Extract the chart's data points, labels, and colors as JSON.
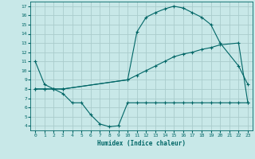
{
  "bg_color": "#c8e8e8",
  "grid_color": "#aacccc",
  "line_color": "#006666",
  "xlabel": "Humidex (Indice chaleur)",
  "xlim": [
    -0.5,
    23.5
  ],
  "ylim": [
    3.5,
    17.5
  ],
  "xticks": [
    0,
    1,
    2,
    3,
    4,
    5,
    6,
    7,
    8,
    9,
    10,
    11,
    12,
    13,
    14,
    15,
    16,
    17,
    18,
    19,
    20,
    21,
    22,
    23
  ],
  "yticks": [
    4,
    5,
    6,
    7,
    8,
    9,
    10,
    11,
    12,
    13,
    14,
    15,
    16,
    17
  ],
  "curve1_x": [
    0,
    1,
    2,
    3,
    10,
    11,
    12,
    13,
    14,
    15,
    16,
    17,
    18,
    19,
    20,
    22,
    23
  ],
  "curve1_y": [
    11,
    8.5,
    8.0,
    8.0,
    9.0,
    14.2,
    15.8,
    16.3,
    16.7,
    17.0,
    16.8,
    16.3,
    15.8,
    15.0,
    13.0,
    10.5,
    8.5
  ],
  "curve2_x": [
    0,
    1,
    2,
    3,
    10,
    11,
    12,
    13,
    14,
    15,
    16,
    17,
    18,
    19,
    20,
    22,
    23
  ],
  "curve2_y": [
    8.0,
    8.0,
    8.0,
    8.0,
    9.0,
    9.5,
    10.0,
    10.5,
    11.0,
    11.5,
    11.8,
    12.0,
    12.3,
    12.5,
    12.8,
    13.0,
    6.5
  ],
  "curve3_x": [
    0,
    1,
    2,
    3,
    4,
    5,
    6,
    7,
    8,
    9,
    10,
    11,
    12,
    13,
    14,
    15,
    16,
    17,
    18,
    19,
    20,
    21,
    22,
    23
  ],
  "curve3_y": [
    8.0,
    8.0,
    8.0,
    7.5,
    6.5,
    6.5,
    5.2,
    4.2,
    3.9,
    4.0,
    6.5,
    6.5,
    6.5,
    6.5,
    6.5,
    6.5,
    6.5,
    6.5,
    6.5,
    6.5,
    6.5,
    6.5,
    6.5,
    6.5
  ]
}
